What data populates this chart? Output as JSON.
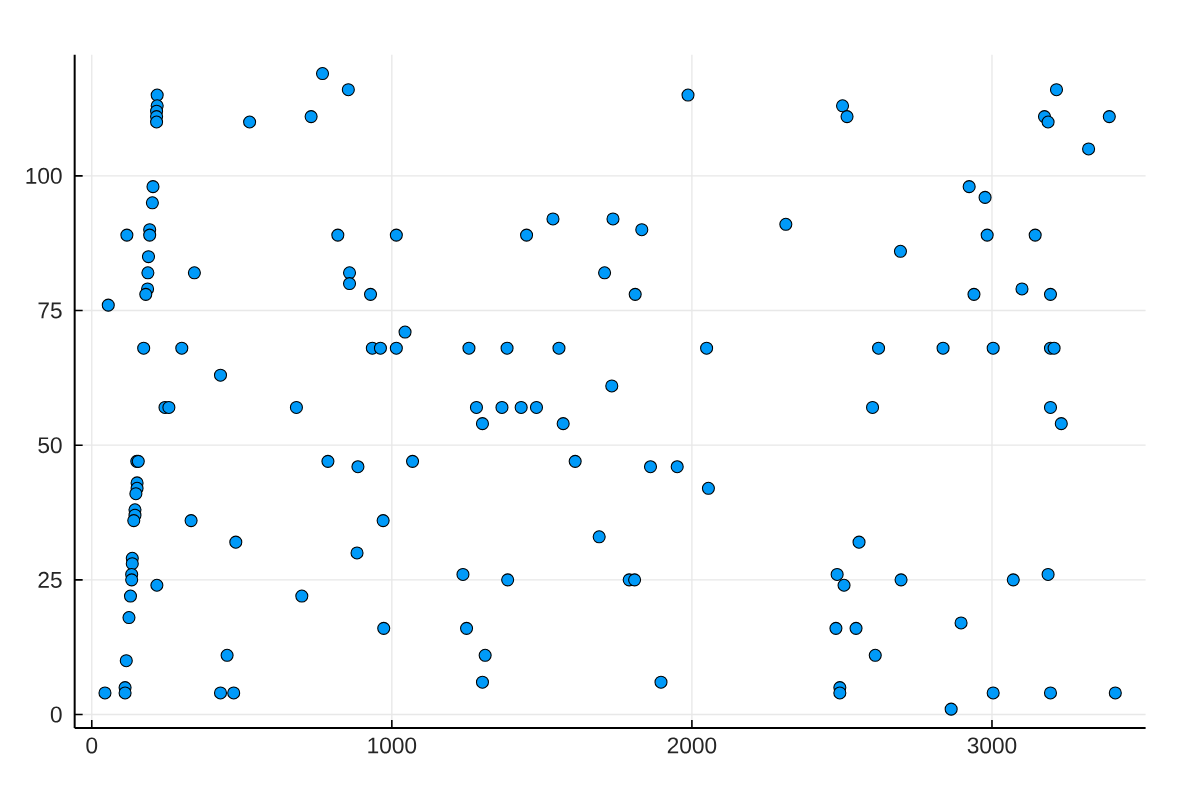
{
  "chart_data": {
    "type": "scatter",
    "x": [
      769,
      855,
      218,
      218,
      216,
      216,
      216,
      526,
      731,
      204,
      202,
      117,
      193,
      193,
      820,
      1015,
      189,
      187,
      342,
      859,
      859,
      186,
      180,
      929,
      55,
      1044,
      173,
      300,
      935,
      962,
      1015,
      429,
      1987,
      1537,
      1737,
      1449,
      1833,
      2313,
      1709,
      1811,
      1257,
      1384,
      1557,
      2049,
      1733,
      3215,
      2502,
      2517,
      3175,
      3187,
      3391,
      3322,
      2924,
      2977,
      2984,
      3144,
      2695,
      2940,
      3100,
      3195,
      2622,
      2837,
      3004,
      3195,
      3207,
      244,
      257,
      682,
      150,
      155,
      787,
      887,
      1069,
      151,
      151,
      147,
      144,
      144,
      140,
      331,
      480,
      971,
      884,
      135,
      135,
      133,
      133,
      217,
      129,
      700,
      124,
      973,
      451,
      115,
      111,
      111,
      44,
      429,
      473,
      1282,
      1367,
      1431,
      1482,
      1302,
      1571,
      1611,
      1862,
      1951,
      2055,
      1691,
      1237,
      1386,
      1791,
      1809,
      1249,
      1311,
      1302,
      1897,
      2602,
      3195,
      3231,
      2557,
      2484,
      2507,
      2697,
      3071,
      3187,
      2480,
      2547,
      2897,
      2611,
      2493,
      2493,
      2864,
      3004,
      3195,
      3411
    ],
    "values": [
      119,
      116,
      115,
      113,
      112,
      111,
      110,
      110,
      111,
      98,
      95,
      89,
      90,
      89,
      89,
      89,
      85,
      82,
      82,
      82,
      80,
      79,
      78,
      78,
      76,
      71,
      68,
      68,
      68,
      68,
      68,
      63,
      115,
      92,
      92,
      89,
      90,
      91,
      82,
      78,
      68,
      68,
      68,
      68,
      61,
      116,
      113,
      111,
      111,
      110,
      111,
      105,
      98,
      96,
      89,
      89,
      86,
      78,
      79,
      78,
      68,
      68,
      68,
      68,
      68,
      57,
      57,
      57,
      47,
      47,
      47,
      46,
      47,
      43,
      42,
      41,
      38,
      37,
      36,
      36,
      32,
      36,
      30,
      29,
      28,
      26,
      25,
      24,
      22,
      22,
      18,
      16,
      11,
      10,
      5,
      4,
      4,
      4,
      4,
      57,
      57,
      57,
      57,
      54,
      54,
      47,
      46,
      46,
      42,
      33,
      26,
      25,
      25,
      25,
      16,
      11,
      6,
      6,
      57,
      57,
      54,
      32,
      26,
      24,
      25,
      25,
      26,
      16,
      16,
      17,
      11,
      5,
      4,
      1,
      4,
      4,
      4
    ],
    "color": "#009af9",
    "marker": "circle",
    "xlim": [
      -57,
      3512
    ],
    "ylim": [
      -2.5,
      122.5
    ],
    "xticks": [
      0,
      1000,
      2000,
      3000
    ],
    "yticks": [
      0,
      25,
      50,
      75,
      100
    ],
    "grid": true
  }
}
